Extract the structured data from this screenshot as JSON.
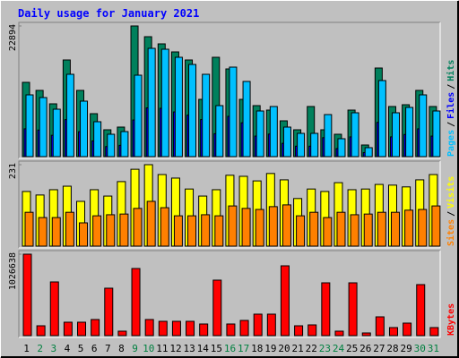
{
  "chart_data": [
    {
      "type": "bar",
      "title": "Daily usage for January 2021",
      "ylim": [
        0,
        22894
      ],
      "yticks": [
        22894
      ],
      "legend_separator": "/",
      "series": [
        {
          "name": "Hits",
          "color": "#00805c",
          "values": [
            13015,
            11604,
            9252,
            16935,
            11604,
            7527,
            4704,
            5175,
            22894,
            21012,
            19758,
            18346,
            16935,
            10036,
            17406,
            15367,
            10036,
            8938,
            8154,
            6272,
            4704,
            8781,
            4704,
            3920,
            8154,
            2039,
            15524,
            8781,
            9095,
            11604,
            8781
          ]
        },
        {
          "name": "Files",
          "color": "#0000ff",
          "values": [
            4870,
            4660,
            3740,
            6490,
            4370,
            2750,
            1760,
            1980,
            6420,
            8540,
            8470,
            7830,
            7270,
            6490,
            4020,
            7060,
            5930,
            3600,
            3950,
            2330,
            1830,
            1830,
            3320,
            1410,
            3460,
            710,
            6000,
            3460,
            3880,
            4870,
            3600
          ]
        },
        {
          "name": "Pages",
          "color": "#00c0ff",
          "values": [
            10820,
            10349,
            8311,
            14426,
            9722,
            6115,
            3920,
            4390,
            14269,
            18973,
            18817,
            17406,
            16151,
            14426,
            8938,
            15681,
            13172,
            7997,
            8781,
            5175,
            4077,
            4077,
            7370,
            3136,
            7683,
            1568,
            13329,
            7683,
            8624,
            10820,
            7997
          ]
        }
      ]
    },
    {
      "type": "bar",
      "ylim": [
        0,
        231
      ],
      "yticks": [
        231
      ],
      "legend_separator": "/",
      "series": [
        {
          "name": "Visits",
          "color": "#ffff00",
          "values": [
            155,
            145,
            160,
            170,
            127,
            160,
            142,
            183,
            218,
            231,
            203,
            193,
            162,
            142,
            160,
            201,
            198,
            185,
            206,
            188,
            135,
            162,
            155,
            180,
            160,
            162,
            175,
            173,
            168,
            188,
            203
          ]
        },
        {
          "name": "Sites",
          "color": "#ff8000",
          "values": [
            96,
            81,
            81,
            96,
            66,
            86,
            89,
            91,
            107,
            127,
            109,
            86,
            86,
            89,
            86,
            114,
            107,
            104,
            112,
            117,
            86,
            96,
            81,
            96,
            89,
            91,
            96,
            96,
            102,
            104,
            114
          ]
        }
      ]
    },
    {
      "type": "bar",
      "ylim": [
        0,
        1026638
      ],
      "yticks": [
        1026638
      ],
      "categories": [
        "1",
        "2",
        "3",
        "4",
        "5",
        "6",
        "7",
        "8",
        "9",
        "10",
        "11",
        "12",
        "13",
        "14",
        "15",
        "16",
        "17",
        "18",
        "19",
        "20",
        "21",
        "22",
        "23",
        "24",
        "25",
        "26",
        "27",
        "28",
        "29",
        "30",
        "31"
      ],
      "category_colors": [
        "#000000",
        "#008040",
        "#008040",
        "#000000",
        "#000000",
        "#000000",
        "#000000",
        "#000000",
        "#008040",
        "#008040",
        "#000000",
        "#000000",
        "#000000",
        "#000000",
        "#000000",
        "#008040",
        "#008040",
        "#000000",
        "#000000",
        "#000000",
        "#000000",
        "#000000",
        "#008040",
        "#008040",
        "#000000",
        "#000000",
        "#000000",
        "#000000",
        "#000000",
        "#008040",
        "#008040"
      ],
      "series": [
        {
          "name": "KBytes",
          "color": "#ff0000",
          "values": [
            1026638,
            124100,
            676900,
            169200,
            169200,
            203100,
            597900,
            56400,
            846100,
            203100,
            180500,
            180500,
            180500,
            146700,
            699500,
            146700,
            191800,
            270800,
            270800,
            880000,
            124100,
            135400,
            665600,
            56400,
            665600,
            33800,
            236900,
            101500,
            157900,
            643100,
            101500
          ]
        }
      ]
    }
  ]
}
